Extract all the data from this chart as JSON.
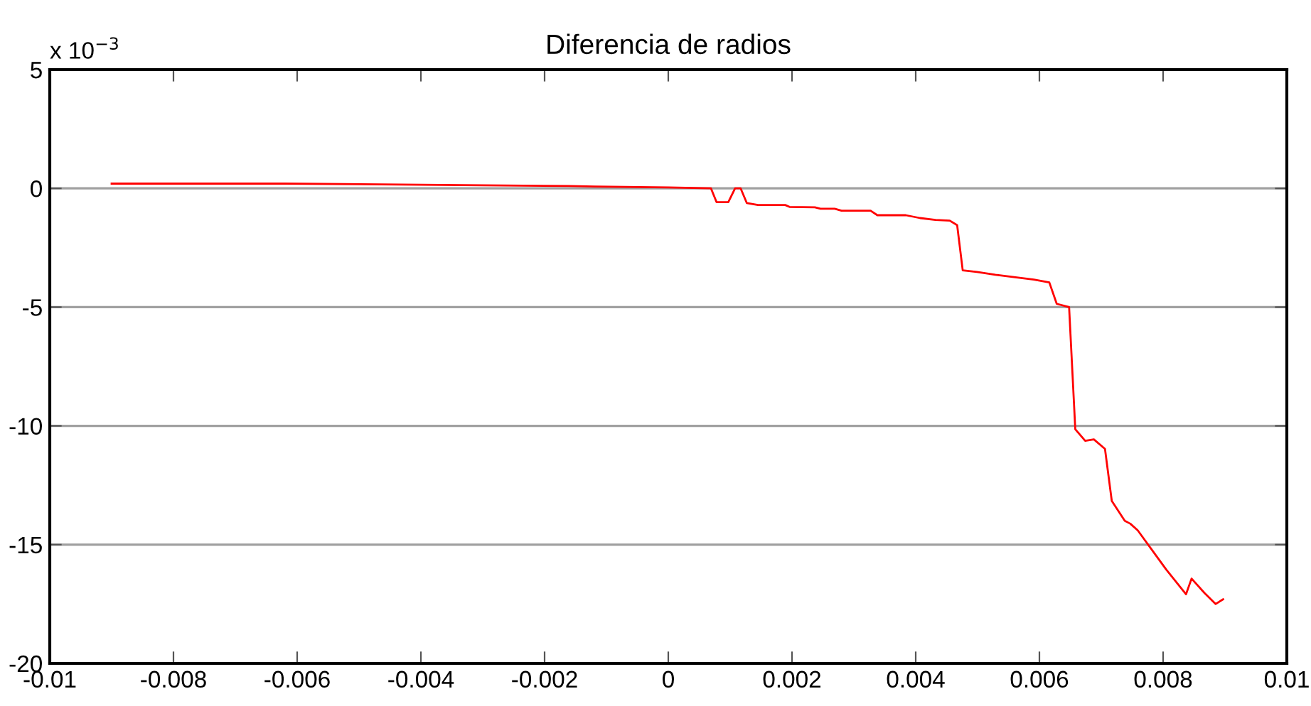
{
  "chart_data": {
    "type": "line",
    "title": "Diferencia de radios",
    "annotations": [
      "x 10$^{−3}$"
    ],
    "series": [
      {
        "color": "#ff0000",
        "x": [
          -0.009,
          -0.0062,
          -0.00161,
          -0.00119,
          0.0,
          0.00069,
          0.00078,
          0.00097,
          0.00108,
          0.00117,
          0.00127,
          0.00145,
          0.00189,
          0.00196,
          0.00237,
          0.00246,
          0.00269,
          0.0028,
          0.00327,
          0.00338,
          0.00384,
          0.00407,
          0.00432,
          0.00455,
          0.00467,
          0.00476,
          0.00499,
          0.00529,
          0.00591,
          0.00616,
          0.00628,
          0.00648,
          0.00658,
          0.00674,
          0.00688,
          0.00706,
          0.00717,
          0.00738,
          0.00747,
          0.00759,
          0.00805,
          0.00837,
          0.00846,
          0.00867,
          0.00885,
          0.00897
        ],
        "values": [
          0.2,
          0.2,
          0.1,
          0.08,
          0.04,
          0.0,
          -0.58,
          -0.58,
          0.0,
          0.0,
          -0.62,
          -0.7,
          -0.7,
          -0.78,
          -0.8,
          -0.86,
          -0.86,
          -0.94,
          -0.94,
          -1.13,
          -1.13,
          -1.25,
          -1.33,
          -1.36,
          -1.55,
          -3.45,
          -3.52,
          -3.64,
          -3.84,
          -3.96,
          -4.86,
          -5.0,
          -10.14,
          -10.63,
          -10.57,
          -10.97,
          -13.16,
          -14.0,
          -14.12,
          -14.4,
          -16.05,
          -17.09,
          -16.43,
          -17.04,
          -17.5,
          -17.3
        ]
      }
    ],
    "xlim": [
      -0.01,
      0.01
    ],
    "xticks": [
      -0.01,
      -0.008,
      -0.006,
      -0.004,
      -0.002,
      0,
      0.002,
      0.004,
      0.006,
      0.008,
      0.01
    ],
    "ylim": [
      -20,
      5
    ],
    "yticks": [
      -20,
      -15,
      -10,
      -5,
      0,
      5
    ],
    "grid": "y",
    "marker": "none",
    "line_style": "solid"
  }
}
